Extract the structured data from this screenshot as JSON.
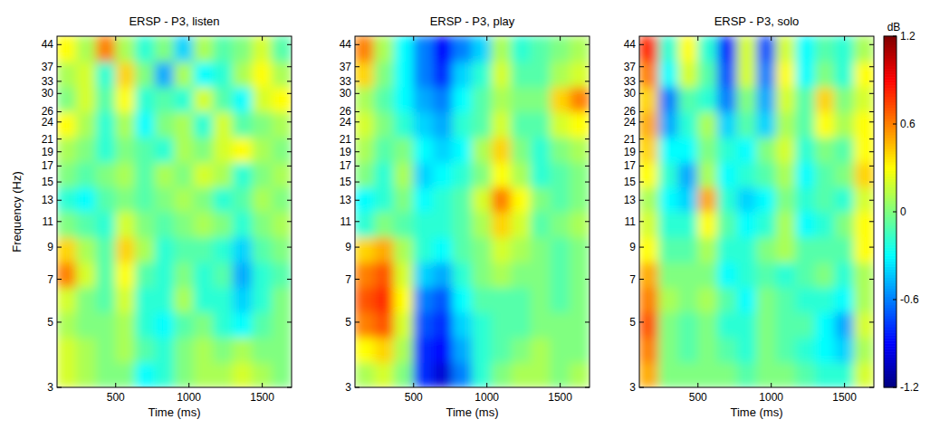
{
  "chart_data": [
    {
      "type": "heatmap",
      "title": "ERSP - P3, listen",
      "x_label": "Time (ms)",
      "y_label": "Frequency (Hz)",
      "log": "y",
      "xlim": [
        100,
        1700
      ],
      "xticks": [
        500,
        1000,
        1500
      ],
      "ylim": [
        3,
        47
      ],
      "yticks": [
        3,
        5,
        7,
        9,
        11,
        13,
        15,
        17,
        19,
        21,
        24,
        26,
        30,
        33,
        37,
        44
      ],
      "x_edges": [
        100,
        233,
        367,
        500,
        633,
        767,
        900,
        1033,
        1167,
        1300,
        1433,
        1567,
        1700
      ],
      "y_edges": [
        3,
        3.65,
        4.44,
        5.41,
        6.58,
        8.0,
        9.74,
        11.9,
        14.4,
        17.5,
        21.3,
        26.0,
        31.6,
        38.5,
        47
      ],
      "z": [
        [
          0.2,
          0.1,
          0.0,
          0.0,
          -0.3,
          -0.2,
          0.0,
          0.1,
          0.1,
          0.2,
          0.1,
          0.0
        ],
        [
          0.2,
          0.1,
          0.0,
          0.1,
          -0.1,
          -0.2,
          0.0,
          0.1,
          0.0,
          0.1,
          0.0,
          0.0
        ],
        [
          0.1,
          0.0,
          0.0,
          0.1,
          -0.2,
          -0.3,
          -0.1,
          0.0,
          -0.2,
          -0.3,
          -0.1,
          0.0
        ],
        [
          0.2,
          0.0,
          -0.1,
          0.2,
          -0.2,
          -0.2,
          0.1,
          -0.2,
          -0.2,
          -0.4,
          -0.2,
          0.0
        ],
        [
          0.6,
          0.2,
          -0.1,
          0.3,
          -0.1,
          -0.2,
          0.0,
          -0.2,
          -0.1,
          -0.5,
          -0.2,
          -0.1
        ],
        [
          0.4,
          0.1,
          -0.1,
          0.4,
          0.1,
          -0.2,
          -0.1,
          -0.1,
          -0.2,
          -0.4,
          -0.1,
          0.0
        ],
        [
          0.0,
          -0.1,
          -0.2,
          0.2,
          0.0,
          -0.1,
          0.0,
          0.1,
          0.0,
          -0.2,
          0.0,
          0.1
        ],
        [
          -0.2,
          -0.3,
          -0.1,
          0.0,
          -0.1,
          0.0,
          0.1,
          0.0,
          -0.2,
          -0.1,
          0.1,
          0.0
        ],
        [
          0.0,
          -0.1,
          0.0,
          0.1,
          -0.1,
          0.1,
          0.0,
          0.2,
          0.1,
          -0.2,
          0.0,
          0.1
        ],
        [
          0.1,
          0.0,
          -0.2,
          0.0,
          -0.1,
          -0.2,
          0.1,
          0.0,
          0.2,
          0.3,
          0.1,
          0.0
        ],
        [
          0.3,
          0.1,
          -0.2,
          0.1,
          -0.3,
          0.0,
          0.1,
          -0.2,
          0.2,
          -0.1,
          0.0,
          0.1
        ],
        [
          0.0,
          0.2,
          -0.1,
          0.3,
          -0.2,
          -0.1,
          -0.2,
          0.2,
          -0.1,
          -0.3,
          0.2,
          0.3
        ],
        [
          0.1,
          0.2,
          -0.2,
          0.4,
          0.0,
          -0.5,
          0.1,
          -0.3,
          -0.2,
          0.1,
          0.3,
          0.1
        ],
        [
          0.3,
          0.1,
          0.6,
          0.1,
          -0.2,
          0.0,
          -0.4,
          0.1,
          -0.1,
          0.0,
          0.2,
          -0.1
        ]
      ]
    },
    {
      "type": "heatmap",
      "title": "ERSP - P3, play",
      "x_label": "Time (ms)",
      "log": "y",
      "xlim": [
        100,
        1700
      ],
      "xticks": [
        500,
        1000,
        1500
      ],
      "ylim": [
        3,
        47
      ],
      "yticks": [
        3,
        5,
        7,
        9,
        11,
        13,
        15,
        17,
        19,
        21,
        24,
        26,
        30,
        33,
        37,
        44
      ],
      "x_edges": [
        100,
        233,
        367,
        500,
        633,
        767,
        900,
        1033,
        1167,
        1300,
        1433,
        1567,
        1700
      ],
      "y_edges": [
        3,
        3.65,
        4.44,
        5.41,
        6.58,
        8.0,
        9.74,
        11.9,
        14.4,
        17.5,
        21.3,
        26.0,
        31.6,
        38.5,
        47
      ],
      "z": [
        [
          0.1,
          0.2,
          0.0,
          -0.8,
          -1.0,
          -0.6,
          -0.2,
          0.0,
          0.1,
          0.1,
          0.0,
          0.1
        ],
        [
          0.3,
          0.4,
          0.1,
          -0.8,
          -0.9,
          -0.5,
          -0.2,
          -0.1,
          0.0,
          0.1,
          0.0,
          0.0
        ],
        [
          0.6,
          0.7,
          0.2,
          -0.7,
          -0.8,
          -0.4,
          -0.2,
          -0.1,
          -0.1,
          0.0,
          0.0,
          0.0
        ],
        [
          0.7,
          0.8,
          0.3,
          -0.6,
          -0.7,
          -0.3,
          -0.1,
          -0.1,
          -0.1,
          0.0,
          -0.1,
          0.0
        ],
        [
          0.6,
          0.7,
          0.2,
          -0.4,
          -0.5,
          -0.2,
          0.0,
          0.1,
          0.0,
          0.0,
          -0.1,
          0.0
        ],
        [
          0.4,
          0.5,
          0.1,
          -0.2,
          -0.3,
          -0.1,
          0.0,
          0.2,
          0.1,
          0.0,
          -0.1,
          0.0
        ],
        [
          -0.2,
          0.0,
          -0.1,
          -0.2,
          -0.2,
          -0.1,
          0.1,
          0.4,
          0.2,
          -0.1,
          0.0,
          0.1
        ],
        [
          -0.3,
          -0.2,
          0.0,
          -0.3,
          -0.2,
          -0.1,
          0.2,
          0.6,
          0.3,
          0.0,
          -0.1,
          0.0
        ],
        [
          0.0,
          -0.2,
          0.1,
          -0.4,
          -0.3,
          -0.2,
          0.0,
          0.3,
          0.1,
          -0.2,
          -0.1,
          0.0
        ],
        [
          0.1,
          -0.1,
          0.0,
          -0.3,
          -0.4,
          -0.3,
          0.1,
          0.4,
          0.0,
          -0.2,
          0.0,
          0.1
        ],
        [
          0.2,
          0.0,
          -0.2,
          -0.4,
          -0.5,
          -0.2,
          -0.1,
          0.2,
          -0.1,
          -0.1,
          0.2,
          0.3
        ],
        [
          0.1,
          -0.1,
          -0.3,
          -0.5,
          -0.6,
          -0.3,
          -0.1,
          0.1,
          0.0,
          0.0,
          0.4,
          0.6
        ],
        [
          0.4,
          0.0,
          -0.3,
          -0.6,
          -0.8,
          -0.4,
          -0.2,
          0.2,
          -0.1,
          -0.1,
          0.1,
          0.2
        ],
        [
          0.6,
          0.1,
          -0.3,
          -0.6,
          -0.9,
          -0.6,
          -0.4,
          0.1,
          -0.2,
          -0.1,
          0.0,
          0.1
        ]
      ]
    },
    {
      "type": "heatmap",
      "title": "ERSP - P3, solo",
      "x_label": "Time (ms)",
      "log": "y",
      "xlim": [
        100,
        1700
      ],
      "xticks": [
        500,
        1000,
        1500
      ],
      "ylim": [
        3,
        47
      ],
      "yticks": [
        3,
        5,
        7,
        9,
        11,
        13,
        15,
        17,
        19,
        21,
        24,
        26,
        30,
        33,
        37,
        44
      ],
      "x_edges": [
        100,
        233,
        367,
        500,
        633,
        767,
        900,
        1033,
        1167,
        1300,
        1433,
        1567,
        1700
      ],
      "y_edges": [
        3,
        3.65,
        4.44,
        5.41,
        6.58,
        8.0,
        9.74,
        11.9,
        14.4,
        17.5,
        21.3,
        26.0,
        31.6,
        38.5,
        47
      ],
      "z": [
        [
          0.5,
          0.0,
          0.0,
          0.0,
          0.0,
          -0.1,
          0.0,
          0.0,
          -0.1,
          -0.2,
          -0.2,
          0.2
        ],
        [
          0.6,
          0.0,
          -0.1,
          0.0,
          -0.1,
          -0.2,
          0.0,
          -0.1,
          -0.2,
          -0.3,
          -0.4,
          0.1
        ],
        [
          0.7,
          0.0,
          -0.1,
          0.0,
          -0.2,
          -0.2,
          0.0,
          -0.1,
          -0.1,
          -0.3,
          -0.5,
          0.2
        ],
        [
          0.6,
          0.1,
          0.0,
          0.1,
          -0.1,
          -0.3,
          0.0,
          -0.1,
          -0.2,
          -0.2,
          -0.3,
          0.1
        ],
        [
          0.5,
          0.0,
          0.0,
          0.0,
          -0.3,
          -0.2,
          -0.1,
          -0.2,
          -0.1,
          0.0,
          -0.2,
          0.1
        ],
        [
          0.3,
          -0.1,
          -0.1,
          0.1,
          -0.2,
          -0.2,
          0.0,
          0.1,
          -0.1,
          -0.1,
          -0.1,
          0.3
        ],
        [
          0.2,
          -0.2,
          -0.2,
          0.3,
          -0.1,
          -0.3,
          -0.2,
          0.1,
          -0.3,
          -0.2,
          0.0,
          0.3
        ],
        [
          0.1,
          -0.3,
          -0.4,
          0.5,
          -0.2,
          -0.4,
          -0.3,
          0.0,
          -0.2,
          -0.1,
          -0.2,
          0.2
        ],
        [
          0.3,
          -0.2,
          -0.5,
          0.1,
          -0.3,
          -0.2,
          -0.1,
          0.1,
          -0.3,
          -0.1,
          0.0,
          0.4
        ],
        [
          0.4,
          -0.3,
          -0.3,
          0.0,
          -0.2,
          -0.3,
          0.0,
          0.2,
          -0.2,
          0.0,
          -0.1,
          0.3
        ],
        [
          0.5,
          -0.5,
          -0.2,
          0.1,
          -0.4,
          -0.1,
          -0.4,
          0.1,
          -0.1,
          0.3,
          0.1,
          0.3
        ],
        [
          0.4,
          -0.6,
          -0.1,
          -0.2,
          -0.6,
          0.0,
          -0.5,
          0.2,
          -0.1,
          0.4,
          0.0,
          0.2
        ],
        [
          0.6,
          -0.3,
          0.2,
          -0.1,
          -0.7,
          0.2,
          -0.6,
          0.3,
          -0.3,
          0.0,
          -0.2,
          0.3
        ],
        [
          0.8,
          -0.2,
          0.3,
          -0.2,
          -0.8,
          0.2,
          -0.7,
          0.2,
          -0.3,
          -0.1,
          -0.2,
          0.1
        ]
      ],
      "colorbar": {
        "label": "dB",
        "range": [
          -1.2,
          1.2
        ],
        "ticks": [
          -1.2,
          -0.6,
          0,
          0.6,
          1.2
        ]
      }
    }
  ]
}
